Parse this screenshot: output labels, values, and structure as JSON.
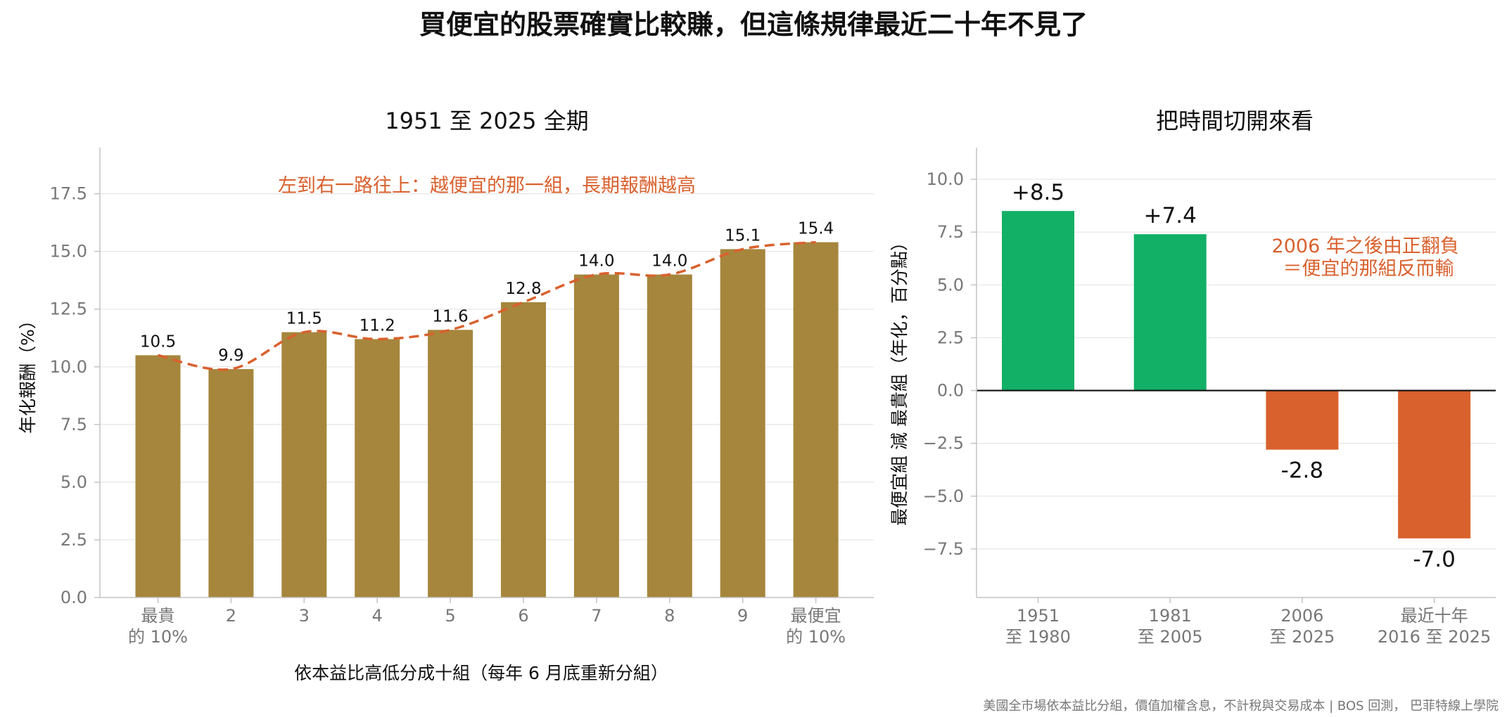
{
  "title": "買便宜的股票確實比較賺，但這條規律最近二十年不見了",
  "footer": "美國全市場依本益比分組，價值加權含息，不計稅與交易成本 | BOS 回測， 巴菲特線上學院",
  "colors": {
    "decile_bar": "#a6863c",
    "trend_line": "#d9612e",
    "positive": "#12b066",
    "negative": "#d9612e",
    "annotation": "#d9612e"
  },
  "chart_data": [
    {
      "type": "bar",
      "title": "1951 至 2025 全期",
      "xlabel": "依本益比高低分成十組（每年 6 月底重新分組）",
      "ylabel": "年化報酬（%）",
      "categories": [
        [
          "最貴",
          "的 10%"
        ],
        [
          "2"
        ],
        [
          "3"
        ],
        [
          "4"
        ],
        [
          "5"
        ],
        [
          "6"
        ],
        [
          "7"
        ],
        [
          "8"
        ],
        [
          "9"
        ],
        [
          "最便宜",
          "的 10%"
        ]
      ],
      "values": [
        10.5,
        9.9,
        11.5,
        11.2,
        11.6,
        12.8,
        14.0,
        14.0,
        15.1,
        15.4
      ],
      "value_labels": [
        "10.5",
        "9.9",
        "11.5",
        "11.2",
        "11.6",
        "12.8",
        "14.0",
        "14.0",
        "15.1",
        "15.4"
      ],
      "overlay": "dashed-line",
      "ylim": [
        0,
        19.5
      ],
      "yticks": [
        0,
        2.5,
        5,
        7.5,
        10,
        12.5,
        15,
        17.5
      ],
      "ytick_labels": [
        "0.0",
        "2.5",
        "5.0",
        "7.5",
        "10.0",
        "12.5",
        "15.0",
        "17.5"
      ],
      "annotation": "左到右一路往上：越便宜的那一組，長期報酬越高",
      "grid": "horizontal"
    },
    {
      "type": "bar",
      "title": "把時間切開來看",
      "xlabel": "",
      "ylabel": "最便宜組 減 最貴組（年化，百分點）",
      "categories": [
        [
          "1951",
          "至 1980"
        ],
        [
          "1981",
          "至 2005"
        ],
        [
          "2006",
          "至 2025"
        ],
        [
          "最近十年",
          "2016 至 2025"
        ]
      ],
      "values": [
        8.5,
        7.4,
        -2.8,
        -7.0
      ],
      "value_labels": [
        "+8.5",
        "+7.4",
        "-2.8",
        "-7.0"
      ],
      "ylim": [
        -9.8,
        11.5
      ],
      "yticks": [
        -7.5,
        -5,
        -2.5,
        0,
        2.5,
        5,
        7.5,
        10
      ],
      "ytick_labels": [
        "−7.5",
        "−5.0",
        "−2.5",
        "0.0",
        "2.5",
        "5.0",
        "7.5",
        "10.0"
      ],
      "annotation": [
        "2006 年之後由正翻負",
        "＝便宜的那組反而輸"
      ],
      "grid": "horizontal",
      "zero_line": true
    }
  ]
}
